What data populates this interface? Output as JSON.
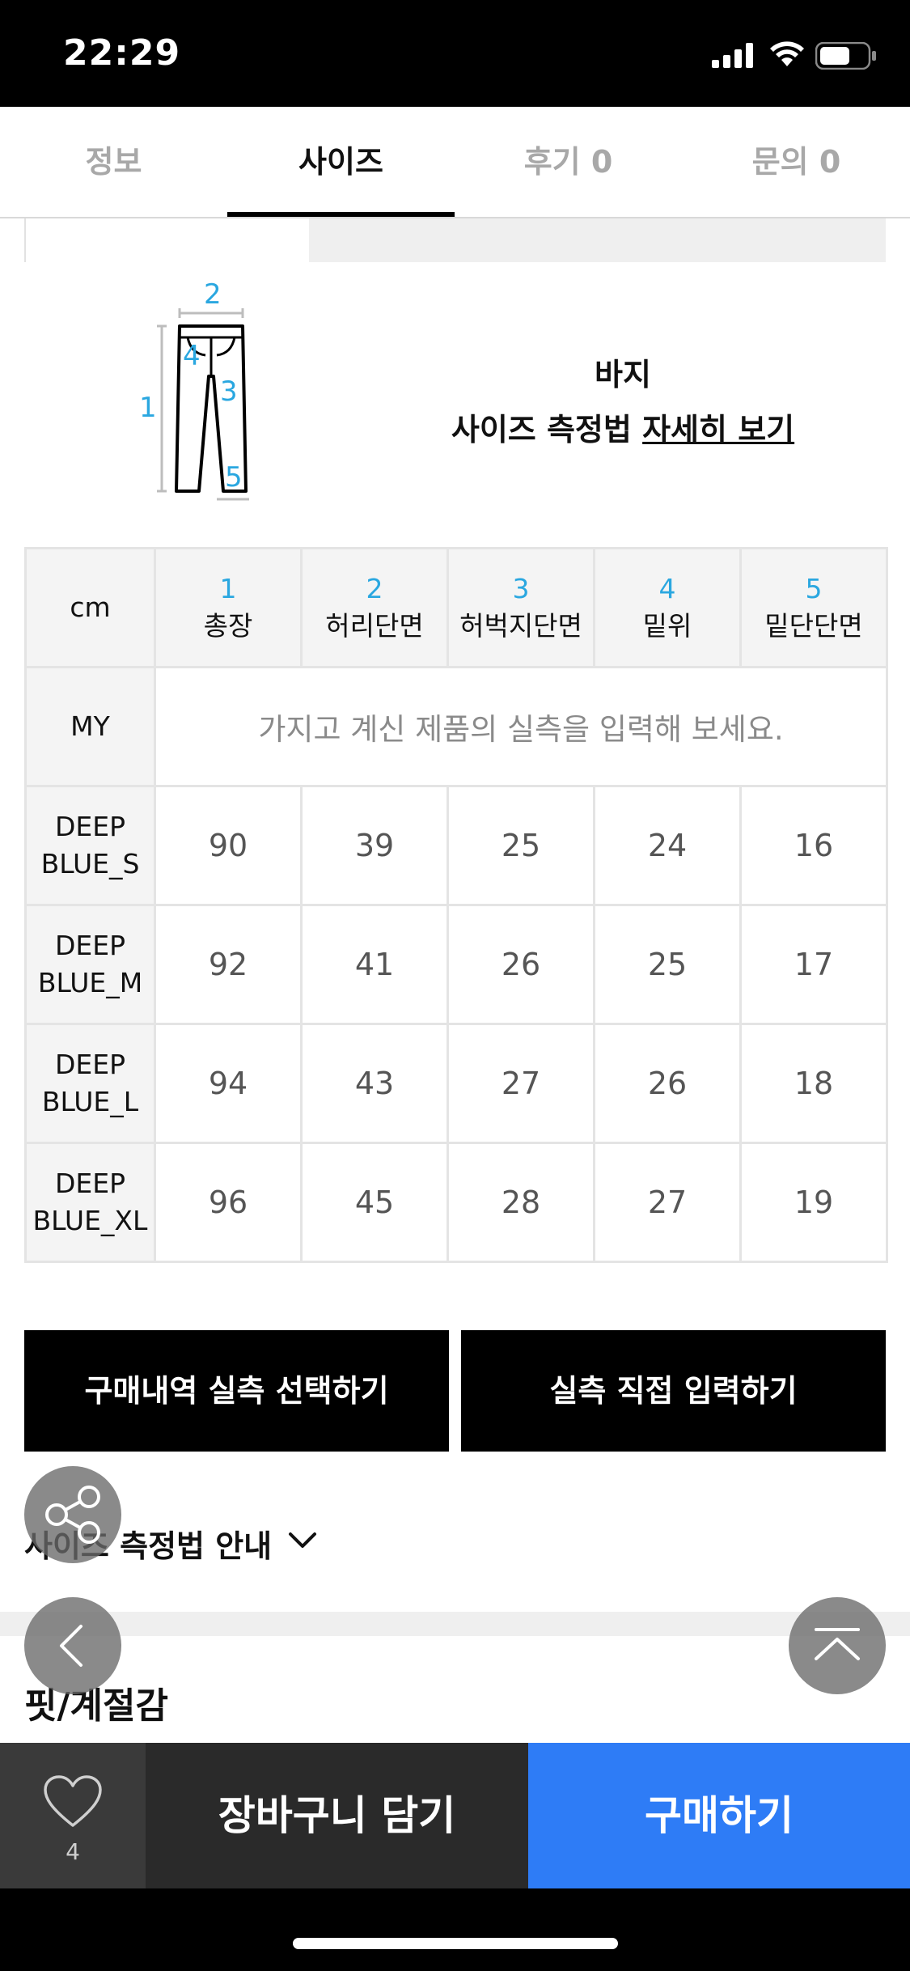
{
  "status_bar": {
    "time": "22:29"
  },
  "tabs": [
    {
      "label": "정보",
      "active": false
    },
    {
      "label": "사이즈",
      "active": true
    },
    {
      "label": "후기 0",
      "active": false
    },
    {
      "label": "문의 0",
      "active": false
    }
  ],
  "diagram": {
    "numbers": [
      "1",
      "2",
      "3",
      "4",
      "5"
    ],
    "product_type": "바지",
    "guide_text": "사이즈 측정법",
    "guide_link": "자세히 보기"
  },
  "size_table": {
    "unit": "cm",
    "columns": [
      {
        "num": "1",
        "label": "총장"
      },
      {
        "num": "2",
        "label": "허리단면"
      },
      {
        "num": "3",
        "label": "허벅지단면"
      },
      {
        "num": "4",
        "label": "밑위"
      },
      {
        "num": "5",
        "label": "밑단단면"
      }
    ],
    "my_label": "MY",
    "my_hint": "가지고 계신 제품의 실측을 입력해 보세요.",
    "rows": [
      {
        "name_line1": "DEEP",
        "name_line2": "BLUE_S",
        "values": [
          "90",
          "39",
          "25",
          "24",
          "16"
        ]
      },
      {
        "name_line1": "DEEP",
        "name_line2": "BLUE_M",
        "values": [
          "92",
          "41",
          "26",
          "25",
          "17"
        ]
      },
      {
        "name_line1": "DEEP",
        "name_line2": "BLUE_L",
        "values": [
          "94",
          "43",
          "27",
          "26",
          "18"
        ]
      },
      {
        "name_line1": "DEEP",
        "name_line2": "BLUE_XL",
        "values": [
          "96",
          "45",
          "28",
          "27",
          "19"
        ]
      }
    ]
  },
  "actions": {
    "purchase_history": "구매내역 실측 선택하기",
    "direct_input": "실측 직접 입력하기"
  },
  "measure_guide_toggle": "사이즈 측정법 안내",
  "fit_section_title": "핏/계절감",
  "bottom_bar": {
    "like_count": "4",
    "cart_label": "장바구니 담기",
    "buy_label": "구매하기"
  },
  "colors": {
    "accent_blue": "#2e7cf6",
    "measure_number": "#2aa7e0"
  }
}
